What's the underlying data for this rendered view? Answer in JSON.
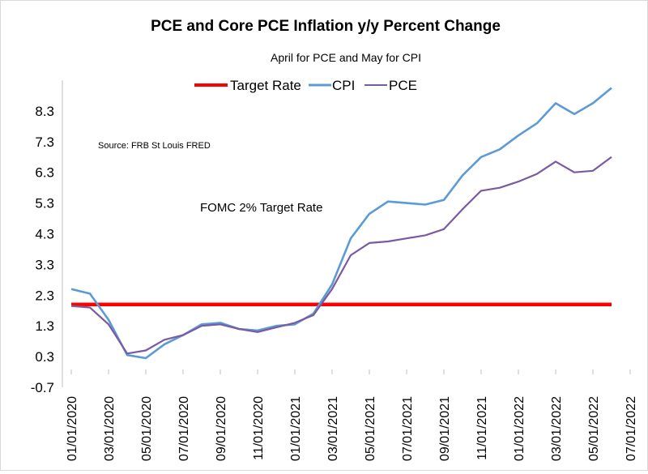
{
  "chart_data": {
    "type": "line",
    "title": "PCE and Core PCE Inflation y/y Percent Change",
    "subtitle": "April for PCE and May for CPI",
    "xlabel": "",
    "ylabel": "",
    "ylim": [
      -0.7,
      9.3
    ],
    "y_ticks": [
      "-0.7",
      "0.3",
      "1.3",
      "2.3",
      "3.3",
      "4.3",
      "5.3",
      "6.3",
      "7.3",
      "8.3"
    ],
    "x_ticks": [
      "01/01/2020",
      "03/01/2020",
      "05/01/2020",
      "07/01/2020",
      "09/01/2020",
      "11/01/2020",
      "01/01/2021",
      "03/01/2021",
      "05/01/2021",
      "07/01/2021",
      "09/01/2021",
      "11/01/2021",
      "01/01/2022",
      "03/01/2022",
      "05/01/2022",
      "07/01/2022"
    ],
    "x": [
      "01/2020",
      "02/2020",
      "03/2020",
      "04/2020",
      "05/2020",
      "06/2020",
      "07/2020",
      "08/2020",
      "09/2020",
      "10/2020",
      "11/2020",
      "12/2020",
      "01/2021",
      "02/2021",
      "03/2021",
      "04/2021",
      "05/2021",
      "06/2021",
      "07/2021",
      "08/2021",
      "09/2021",
      "10/2021",
      "11/2021",
      "12/2021",
      "01/2022",
      "02/2022",
      "03/2022",
      "04/2022",
      "05/2022",
      "06/2022"
    ],
    "legend_position": "top",
    "series": [
      {
        "name": "Target Rate",
        "color": "#ff0000",
        "values": [
          2,
          2,
          2,
          2,
          2,
          2,
          2,
          2,
          2,
          2,
          2,
          2,
          2,
          2,
          2,
          2,
          2,
          2,
          2,
          2,
          2,
          2,
          2,
          2,
          2,
          2,
          2,
          2,
          2,
          2
        ]
      },
      {
        "name": "CPI",
        "color": "#5b9bd5",
        "values": [
          2.5,
          2.35,
          1.5,
          0.35,
          0.25,
          0.7,
          1.0,
          1.35,
          1.4,
          1.2,
          1.15,
          1.3,
          1.35,
          1.7,
          2.65,
          4.15,
          4.95,
          5.35,
          5.3,
          5.25,
          5.4,
          6.2,
          6.8,
          7.05,
          7.5,
          7.9,
          8.55,
          8.2,
          8.55,
          9.05
        ]
      },
      {
        "name": "PCE",
        "color": "#7a5aa0",
        "values": [
          1.95,
          1.9,
          1.35,
          0.4,
          0.5,
          0.85,
          1.0,
          1.3,
          1.35,
          1.2,
          1.1,
          1.25,
          1.4,
          1.65,
          2.5,
          3.6,
          4.0,
          4.05,
          4.15,
          4.25,
          4.45,
          5.1,
          5.7,
          5.8,
          6.0,
          6.25,
          6.65,
          6.3,
          6.35,
          6.8
        ]
      }
    ],
    "annotations": [
      "Source: FRB St Louis FRED",
      "FOMC 2% Target Rate"
    ]
  }
}
